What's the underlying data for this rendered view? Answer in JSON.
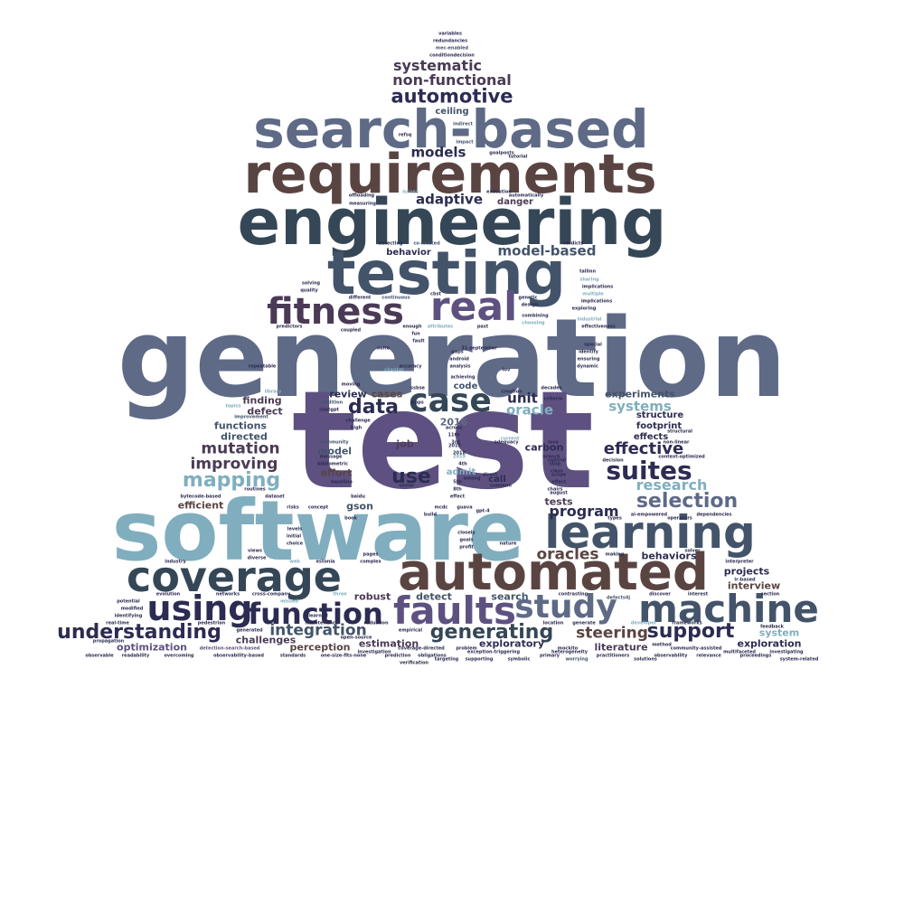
{
  "words": {
    "test": "test",
    "generation": "generation",
    "software": "software",
    "engineering": "engineering",
    "requirements": "requirements",
    "search_based": "search-based",
    "testing": "testing",
    "automated": "automated",
    "coverage": "coverage",
    "learning": "learning",
    "machine": "machine",
    "faults": "faults",
    "using": "using",
    "fitness": "fitness",
    "real": "real",
    "case": "case",
    "function": "function",
    "study": "study",
    "suites": "suites",
    "understanding": "understanding",
    "generating": "generating",
    "support": "support",
    "selection": "selection",
    "mapping": "mapping",
    "automotive": "automotive",
    "data": "data",
    "use": "use",
    "mutation": "mutation",
    "improving": "improving",
    "effective": "effective",
    "integration": "integration",
    "oracles": "oracles",
    "steering": "steering",
    "program": "program",
    "research": "research",
    "systematic": "systematic",
    "non_functional": "non-functional",
    "models": "models",
    "model_based": "model-based",
    "adaptive": "adaptive",
    "systems": "systems",
    "unit": "unit",
    "oracle": "oracle",
    "ceiling": "ceiling",
    "danger": "danger",
    "behavior": "behavior",
    "review": "review",
    "cases": "cases",
    "code": "code",
    "experiments": "experiments",
    "structure": "structure",
    "footprint": "footprint",
    "effects": "effects",
    "finding": "finding",
    "defect": "defect",
    "functions": "functions",
    "directed": "directed",
    "y2016": "2016",
    "job": "job",
    "model": "model",
    "admit": "admit",
    "call": "call",
    "carbon": "carbon",
    "effort": "effort",
    "efficient": "efficient",
    "gson": "gson",
    "tests": "tests",
    "behaviors": "behaviors",
    "projects": "projects",
    "interview": "interview",
    "exploration": "exploration",
    "system": "system",
    "literature": "literature",
    "exploratory": "exploratory",
    "search": "search",
    "detect": "detect",
    "robust": "robust",
    "estimation": "estimation",
    "perception": "perception",
    "challenges": "challenges",
    "optimization": "optimization",
    "variables": "variables",
    "redundancies": "redundancies",
    "mec_enabled": "mec-enabled",
    "conditiondecision": "conditiondecision",
    "indirect": "indirect",
    "refsq": "refsq",
    "impact": "impact",
    "goalposts": "goalposts",
    "tutorial": "tutorial",
    "execution": "execution",
    "automatically": "automatically",
    "offloading": "offloading",
    "measuring": "measuring",
    "issues": "issues",
    "detecting": "detecting",
    "co_located": "co-located",
    "verdicts": "verdicts",
    "tallinn": "tallinn",
    "sharing": "sharing",
    "multiple": "multiple",
    "implications": "implications",
    "exploring": "exploring",
    "industrial": "industrial",
    "effectiveness": "effectiveness",
    "solving": "solving",
    "quality": "quality",
    "different": "different",
    "continuous": "continuous",
    "cbst": "cbst",
    "genetic": "genetic",
    "design": "design",
    "combining": "combining",
    "choosing": "choosing",
    "predictors": "predictors",
    "coupled": "coupled",
    "enough": "enough",
    "attributes": "attributes",
    "fun": "fun",
    "fault": "fault",
    "past": "past",
    "special": "special",
    "identify": "identify",
    "ensuring": "ensuring",
    "dynamic": "dynamic",
    "suite": "suite",
    "d31_september": "31-september",
    "gaps": "gaps",
    "android": "android",
    "analysis": "analysis",
    "repeatable": "repeatable",
    "chapter": "chapter",
    "accuracy": "accuracy",
    "iov": "iov",
    "achieving": "achieving",
    "ssbse": "ssbse",
    "creation": "creation",
    "decades": "decades",
    "library": "library",
    "moving": "moving",
    "condition": "condition",
    "chatgpt": "chatgpt",
    "apps": "apps",
    "criteria": "criteria",
    "topics": "topics",
    "improvement": "improvement",
    "challenge": "challenge",
    "high": "high",
    "across": "across",
    "d11th": "11th",
    "d3rd": "3rd",
    "love": "love",
    "structural": "structural",
    "current": "current",
    "adequacy": "adequacy",
    "non_linear": "non-linear",
    "y2017": "2017",
    "y2018": "2018",
    "y2019": "2019",
    "community": "community",
    "bibliometric": "bibliometric",
    "message": "message",
    "branch": "branch",
    "control": "control",
    "stop": "stop",
    "context_optimized": "context-optimized",
    "decision": "decision",
    "class": "class",
    "scope": "scope",
    "effect": "effect",
    "chairs": "chairs",
    "august": "august",
    "d4th": "4th",
    "among": "among",
    "direct": "direct",
    "tester": "tester",
    "baseline": "baseline",
    "d5th": "5th",
    "d8th": "8th",
    "common": "common",
    "bytecode_based": "bytecode-based",
    "routines": "routines",
    "dataset": "dataset",
    "baidu": "baidu",
    "ai_empowered": "ai-empowered",
    "dependencies": "dependencies",
    "types": "types",
    "operators": "operators",
    "risks": "risks",
    "concept": "concept",
    "mcdc": "mcdc",
    "guava": "guava",
    "gpt4": "gpt-4",
    "build": "build",
    "book": "book",
    "levels": "levels",
    "initial": "initial",
    "choice": "choice",
    "closely": "closely",
    "goals": "goals",
    "profit": "profit",
    "nature": "nature",
    "views": "views",
    "diverse": "diverse",
    "pages": "pages",
    "complex": "complex",
    "making": "making",
    "solver": "solver",
    "interpreter": "interpreter",
    "industry": "industry",
    "web": "web",
    "estonia": "estonia",
    "ir_based": "ir-based",
    "evolution": "evolution",
    "networks": "networks",
    "cross_company": "cross-company",
    "three": "three",
    "contrasting": "contrasting",
    "defects4j": "defects4j",
    "discover": "discover",
    "interest": "interest",
    "section": "section",
    "potential": "potential",
    "modified": "modified",
    "identifying": "identifying",
    "missed": "missed",
    "learned": "learned",
    "real_time": "real-time",
    "pedestrian": "pedestrian",
    "maintenance": "maintenance",
    "reduction": "reduction",
    "location": "location",
    "generate": "generate",
    "developer": "developer",
    "frameworks": "frameworks",
    "feedback": "feedback",
    "propagation": "propagation",
    "generated": "generated",
    "open_source": "open-source",
    "empirical": "empirical",
    "problem": "problem",
    "mockito": "mockito",
    "method": "method",
    "community_assisted": "community-assisted",
    "multifaceted": "multifaceted",
    "investigating": "investigating",
    "detection_search_based": "detection-search-based",
    "investigation": "investigation",
    "coverage_directed": "coverage-directed",
    "exception_triggering": "exception-triggering",
    "heterogeneity": "heterogeneity",
    "observable": "observable",
    "readability": "readability",
    "overcoming": "overcoming",
    "observability_based": "observability-based",
    "standards": "standards",
    "one_size_fits_none": "one-size-fits-none",
    "prediction": "prediction",
    "obligations": "obligations",
    "targeting": "targeting",
    "supporting": "supporting",
    "symbolic": "symbolic",
    "primary": "primary",
    "worrying": "worrying",
    "practitioners": "practitioners",
    "solutions": "solutions",
    "observability": "observability",
    "relevance": "relevance",
    "proceedings": "proceedings",
    "system_related": "system-related",
    "verification": "verification"
  },
  "colors": {
    "slate_blue": "#5e6a86",
    "brown": "#5a4442",
    "dark_slate": "#354757",
    "light_blue": "#80aebe",
    "purple": "#5e5181",
    "plum": "#4b3a55",
    "navy": "#2c2c52",
    "steel": "#43546a"
  }
}
